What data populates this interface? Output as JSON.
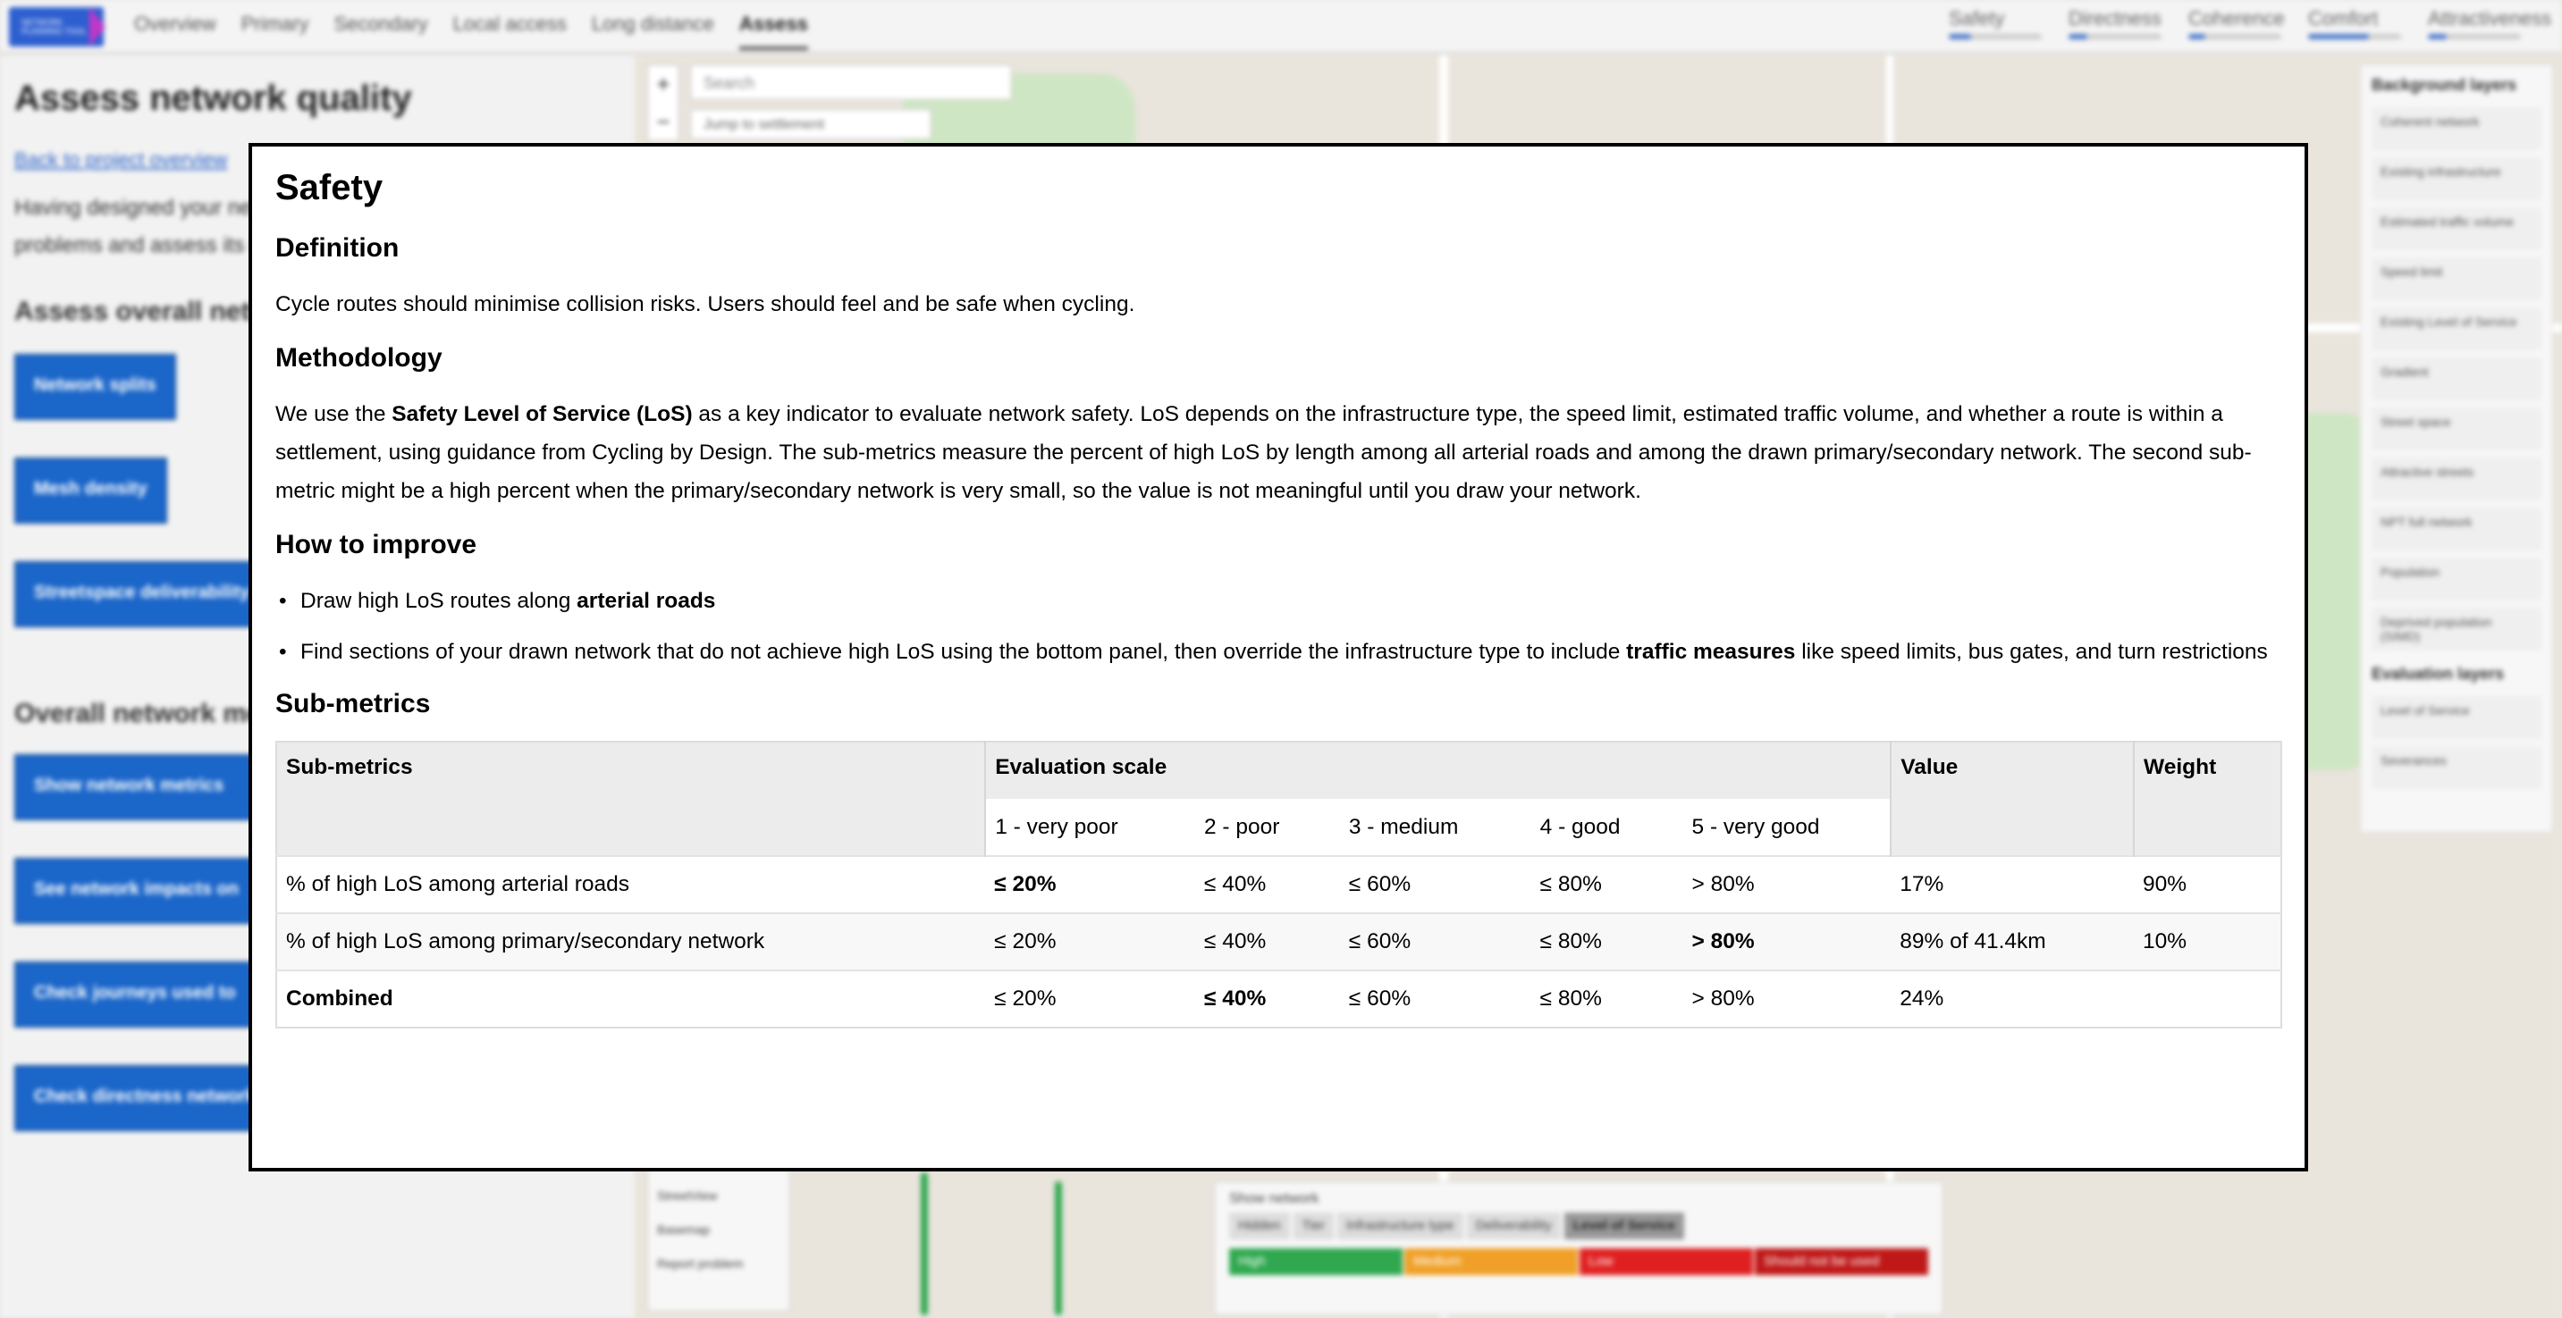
{
  "app": {
    "logo_text": "NETWORK PLANNING TOOL",
    "breadcrumbs": [
      "Overview",
      "Primary",
      "Secondary",
      "Local access",
      "Long distance",
      "Assess"
    ],
    "active_breadcrumb": "Assess",
    "metric_tabs": [
      {
        "label": "Safety",
        "progress": 0.24
      },
      {
        "label": "Directness",
        "progress": 0.2
      },
      {
        "label": "Coherence",
        "progress": 0.18
      },
      {
        "label": "Comfort",
        "progress": 0.65
      },
      {
        "label": "Attractiveness",
        "progress": 0.2
      }
    ]
  },
  "left_panel": {
    "title": "Assess network quality",
    "back_link": "Back to project overview",
    "intro": "Having designed your network, you can now check for problems and assess its quality",
    "section1": "Assess overall network",
    "section1_buttons": [
      "Network splits",
      "Mesh density",
      "Streetspace deliverability"
    ],
    "section2": "Overall network metrics",
    "section2_buttons": [
      "Show network metrics",
      "See network impacts on",
      "Check journeys used to",
      "Check directness network"
    ]
  },
  "map": {
    "search_placeholder": "Search",
    "jump_label": "Jump to settlement",
    "zoom_in": "+",
    "zoom_out": "−",
    "background_layers_title": "Background layers",
    "background_layers": [
      "Coherent network",
      "Existing infrastructure",
      "Estimated traffic volume",
      "Speed limit",
      "Existing Level of Service",
      "Gradient",
      "Street space",
      "Attractive streets",
      "NPT full network",
      "Population",
      "Deprived population (SIMD)"
    ],
    "evaluation_layers_title": "Evaluation layers",
    "evaluation_layers": [
      "Level of Service",
      "Severances"
    ],
    "show_network_label": "Show network",
    "network_options": [
      "Hidden",
      "Tier",
      "Infrastructure type",
      "Deliverability",
      "Level of Service"
    ],
    "network_active": "Level of Service",
    "los_legend": [
      {
        "label": "High",
        "color": "#2fa84f"
      },
      {
        "label": "Medium",
        "color": "#f0a028"
      },
      {
        "label": "Low",
        "color": "#e02020"
      },
      {
        "label": "Should not be used",
        "color": "#c01818"
      }
    ],
    "mini_controls": [
      "StreetView",
      "Basemap",
      "Report problem"
    ]
  },
  "modal": {
    "title": "Safety",
    "definition_heading": "Definition",
    "definition_text": "Cycle routes should minimise collision risks. Users should feel and be safe when cycling.",
    "methodology_heading": "Methodology",
    "methodology_pre": "We use the ",
    "methodology_bold": "Safety Level of Service (LoS)",
    "methodology_post": " as a key indicator to evaluate network safety. LoS depends on the infrastructure type, the speed limit, estimated traffic volume, and whether a route is within a settlement, using guidance from Cycling by Design. The sub-metrics measure the percent of high LoS by length among all arterial roads and among the drawn primary/secondary network. The second sub-metric might be a high percent when the primary/secondary network is very small, so the value is not meaningful until you draw your network.",
    "improve_heading": "How to improve",
    "improve1_pre": "Draw high LoS routes along ",
    "improve1_bold": "arterial roads",
    "improve2_pre": "Find sections of your drawn network that do not achieve high LoS using the bottom panel, then override the infrastructure type to include ",
    "improve2_bold": "traffic measures",
    "improve2_post": " like speed limits, bus gates, and turn restrictions",
    "submetrics_heading": "Sub-metrics",
    "table": {
      "col_submetrics": "Sub-metrics",
      "col_scale": "Evaluation scale",
      "col_value": "Value",
      "col_weight": "Weight",
      "scale_labels": [
        "1 - very poor",
        "2 - poor",
        "3 - medium",
        "4 - good",
        "5 - very good"
      ],
      "rows": [
        {
          "name": "% of high LoS among arterial roads",
          "name_bold": false,
          "scale": [
            "≤ 20%",
            "≤ 40%",
            "≤ 60%",
            "≤ 80%",
            "> 80%"
          ],
          "highlight": 0,
          "value": "17%",
          "weight": "90%"
        },
        {
          "name": "% of high LoS among primary/secondary network",
          "name_bold": false,
          "scale": [
            "≤ 20%",
            "≤ 40%",
            "≤ 60%",
            "≤ 80%",
            "> 80%"
          ],
          "highlight": 4,
          "value": "89% of 41.4km",
          "weight": "10%"
        },
        {
          "name": "Combined",
          "name_bold": true,
          "scale": [
            "≤ 20%",
            "≤ 40%",
            "≤ 60%",
            "≤ 80%",
            "> 80%"
          ],
          "highlight": 1,
          "value": "24%",
          "weight": ""
        }
      ]
    }
  }
}
